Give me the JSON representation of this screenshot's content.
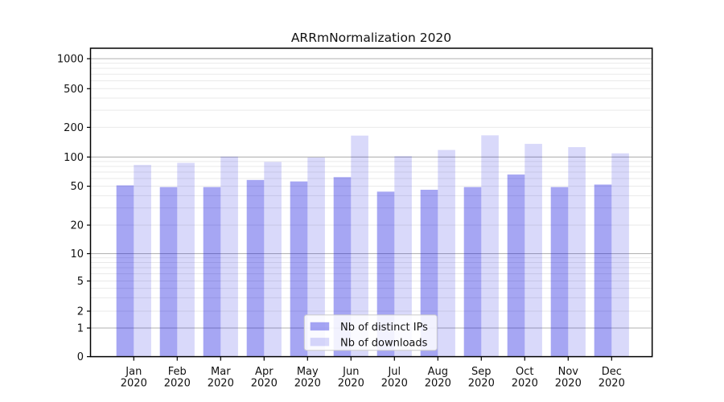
{
  "title": "ARRmNormalization 2020",
  "chart_data": {
    "type": "bar",
    "months": [
      "Jan",
      "Feb",
      "Mar",
      "Apr",
      "May",
      "Jun",
      "Jul",
      "Aug",
      "Sep",
      "Oct",
      "Nov",
      "Dec"
    ],
    "year": "2020",
    "categories": [
      "Jan 2020",
      "Feb 2020",
      "Mar 2020",
      "Apr 2020",
      "May 2020",
      "Jun 2020",
      "Jul 2020",
      "Aug 2020",
      "Sep 2020",
      "Oct 2020",
      "Nov 2020",
      "Dec 2020"
    ],
    "series": [
      {
        "name": "Nb of distinct IPs",
        "color": "#0000dd",
        "opacity": 0.35,
        "values": [
          51,
          49,
          49,
          58,
          56,
          62,
          44,
          46,
          49,
          66,
          49,
          52
        ]
      },
      {
        "name": "Nb of downloads",
        "color": "#0000dd",
        "opacity": 0.15,
        "values": [
          83,
          87,
          101,
          89,
          99,
          165,
          102,
          118,
          166,
          136,
          126,
          109
        ]
      }
    ],
    "yticks": [
      0,
      1,
      2,
      5,
      10,
      20,
      50,
      100,
      200,
      500,
      1000
    ],
    "yscale": "symlog",
    "ylim": [
      0,
      1280
    ],
    "xlabel": "",
    "ylabel": "",
    "grid": "horizontal major+minor",
    "legend_position": "lower center inside plot"
  },
  "colors": {
    "bar_distinct_ips_rendered": "#a6a6f3",
    "bar_downloads_rendered": "#dadaf9",
    "grid_major": "#b2b2b2",
    "grid_minor": "#e9e9e9",
    "spine": "#000000",
    "legend_border": "#cccccc",
    "text": "#111111"
  }
}
